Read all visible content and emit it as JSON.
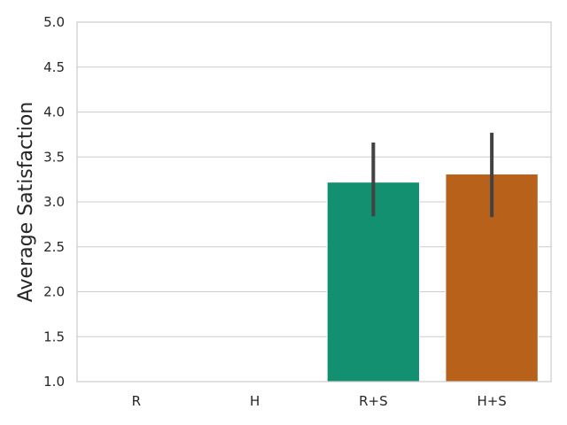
{
  "chart_data": {
    "type": "bar",
    "categories": [
      "R",
      "H",
      "R+S",
      "H+S"
    ],
    "values": [
      null,
      null,
      3.22,
      3.31
    ],
    "error_bars": [
      null,
      null,
      [
        2.84,
        3.66
      ],
      [
        2.83,
        3.77
      ]
    ],
    "colors": [
      "#1b9e77",
      "#d95f02",
      "#129070",
      "#b8611a"
    ],
    "title": "",
    "xlabel": "",
    "ylabel": "Average Satisfaction",
    "ylim": [
      1.0,
      5.0
    ],
    "yticks": [
      "1.0",
      "1.5",
      "2.0",
      "2.5",
      "3.0",
      "3.5",
      "4.0",
      "4.5",
      "5.0"
    ],
    "grid": true,
    "grid_axis": "y"
  }
}
